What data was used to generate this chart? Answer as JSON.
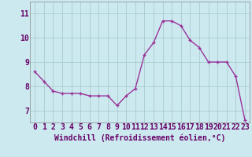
{
  "x": [
    0,
    1,
    2,
    3,
    4,
    5,
    6,
    7,
    8,
    9,
    10,
    11,
    12,
    13,
    14,
    15,
    16,
    17,
    18,
    19,
    20,
    21,
    22,
    23
  ],
  "y": [
    8.6,
    8.2,
    7.8,
    7.7,
    7.7,
    7.7,
    7.6,
    7.6,
    7.6,
    7.2,
    7.6,
    7.9,
    9.3,
    9.8,
    10.7,
    10.7,
    10.5,
    9.9,
    9.6,
    9.0,
    9.0,
    9.0,
    8.4,
    6.6
  ],
  "line_color": "#993399",
  "marker": "+",
  "marker_size": 3,
  "marker_lw": 1.0,
  "line_width": 1.0,
  "background_color": "#cce9f0",
  "grid_color": "#aacccc",
  "xlabel": "Windchill (Refroidissement éolien,°C)",
  "xlabel_fontsize": 7,
  "tick_fontsize": 7,
  "ylim": [
    6.5,
    11.5
  ],
  "xlim": [
    -0.5,
    23.5
  ],
  "yticks": [
    7,
    8,
    9,
    10,
    11
  ],
  "xticks": [
    0,
    1,
    2,
    3,
    4,
    5,
    6,
    7,
    8,
    9,
    10,
    11,
    12,
    13,
    14,
    15,
    16,
    17,
    18,
    19,
    20,
    21,
    22,
    23
  ]
}
